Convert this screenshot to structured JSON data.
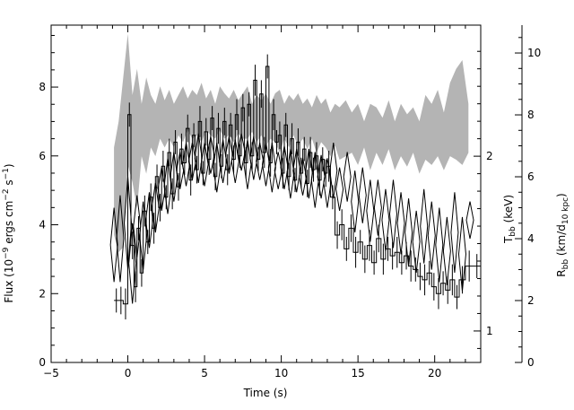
{
  "chart_data": {
    "type": "line",
    "title": "",
    "xlabel": "Time (s)",
    "ylabel": {
      "base": "Flux (10",
      "exp1": "−9",
      "mid": " ergs cm",
      "exp2": "−2",
      "mid2": " s",
      "exp3": "−1",
      "end": ")"
    },
    "ylabel_right_T": {
      "base": "T",
      "sub": "bb",
      "end": " (keV)"
    },
    "ylabel_right_R": {
      "base": "R",
      "sub": "bb",
      "mid": " (km/d",
      "sub2": "10 kpc",
      "end": ")"
    },
    "xlim": [
      -5,
      23
    ],
    "ylim": [
      0,
      9.8
    ],
    "ylim_T": [
      0.82,
      2.75
    ],
    "ylim_R": [
      0,
      10.9
    ],
    "x_ticks": [
      -5,
      0,
      5,
      10,
      15,
      20
    ],
    "y_ticks": [
      0,
      2,
      4,
      6,
      8
    ],
    "T_ticks": [
      1,
      2
    ],
    "R_ticks": [
      0,
      2,
      4,
      6,
      8,
      10
    ],
    "grid": false,
    "legend": "none",
    "series": [
      {
        "kind": "flux_step",
        "x": [
          -0.9,
          -0.6,
          -0.3,
          0.0,
          0.2,
          0.4,
          0.6,
          0.8,
          1.0,
          1.2,
          1.4,
          1.6,
          1.8,
          2.0,
          2.2,
          2.4,
          2.6,
          2.8,
          3.0,
          3.2,
          3.4,
          3.6,
          3.8,
          4.0,
          4.2,
          4.4,
          4.6,
          4.8,
          5.0,
          5.2,
          5.4,
          5.6,
          5.8,
          6.0,
          6.2,
          6.4,
          6.6,
          6.8,
          7.0,
          7.2,
          7.4,
          7.6,
          7.8,
          8.0,
          8.2,
          8.4,
          8.6,
          8.8,
          9.0,
          9.2,
          9.4,
          9.6,
          9.8,
          10.0,
          10.2,
          10.4,
          10.6,
          10.8,
          11.0,
          11.2,
          11.4,
          11.6,
          11.8,
          12.0,
          12.2,
          12.4,
          12.6,
          12.8,
          13.0,
          13.2,
          13.5,
          13.8,
          14.1,
          14.4,
          14.7,
          15.0,
          15.3,
          15.6,
          15.9,
          16.2,
          16.5,
          16.8,
          17.1,
          17.4,
          17.7,
          18.0,
          18.3,
          18.6,
          18.9,
          19.2,
          19.5,
          19.8,
          20.1,
          20.4,
          20.7,
          21.0,
          21.3,
          21.6,
          22.0,
          22.5
        ],
        "y": [
          1.8,
          1.8,
          1.7,
          7.2,
          3.4,
          2.2,
          3.9,
          2.6,
          4.4,
          3.5,
          4.8,
          3.9,
          5.4,
          4.5,
          5.7,
          4.8,
          6.1,
          4.9,
          6.4,
          5.1,
          6.2,
          5.8,
          6.8,
          5.3,
          6.6,
          5.6,
          7.0,
          5.5,
          6.7,
          5.9,
          7.1,
          5.4,
          6.8,
          5.7,
          7.0,
          5.6,
          6.9,
          5.9,
          7.2,
          6.0,
          7.4,
          5.8,
          7.5,
          6.0,
          8.2,
          5.9,
          7.8,
          6.1,
          8.6,
          5.8,
          7.2,
          6.4,
          6.6,
          5.5,
          6.9,
          5.4,
          6.5,
          5.3,
          6.4,
          5.5,
          6.2,
          5.2,
          6.1,
          5.6,
          6.0,
          5.3,
          5.9,
          5.5,
          5.7,
          4.8,
          3.7,
          4.0,
          3.3,
          3.9,
          3.2,
          3.5,
          3.0,
          3.4,
          2.9,
          3.6,
          3.0,
          3.3,
          3.1,
          3.2,
          2.9,
          3.1,
          2.8,
          2.7,
          2.5,
          2.4,
          2.6,
          2.2,
          2.0,
          2.3,
          2.1,
          2.4,
          1.9,
          2.4,
          2.8,
          2.8
        ]
      },
      {
        "kind": "T_band",
        "x": [
          -0.9,
          -0.6,
          -0.3,
          0.0,
          0.3,
          0.6,
          0.9,
          1.2,
          1.5,
          1.8,
          2.1,
          2.4,
          2.7,
          3.0,
          3.3,
          3.6,
          3.9,
          4.2,
          4.5,
          4.8,
          5.1,
          5.4,
          5.7,
          6.0,
          6.3,
          6.6,
          6.9,
          7.2,
          7.5,
          7.8,
          8.1,
          8.4,
          8.7,
          9.0,
          9.3,
          9.6,
          9.9,
          10.2,
          10.5,
          10.8,
          11.1,
          11.4,
          11.7,
          12.0,
          12.3,
          12.6,
          12.9,
          13.2,
          13.5,
          13.8,
          14.2,
          14.6,
          15.0,
          15.4,
          15.8,
          16.2,
          16.6,
          17.0,
          17.4,
          17.8,
          18.2,
          18.6,
          19.0,
          19.4,
          19.8,
          20.2,
          20.6,
          21.0,
          21.4,
          21.8,
          22.2
        ],
        "lo": [
          1.55,
          1.45,
          1.48,
          1.95,
          1.85,
          1.7,
          2.0,
          1.9,
          2.05,
          2.0,
          2.1,
          2.05,
          2.1,
          2.05,
          2.12,
          2.08,
          2.15,
          2.1,
          2.12,
          2.08,
          2.15,
          2.12,
          2.1,
          2.15,
          2.1,
          2.12,
          2.08,
          2.13,
          2.1,
          2.1,
          2.14,
          2.08,
          2.12,
          2.06,
          2.1,
          2.08,
          2.02,
          2.1,
          2.05,
          2.12,
          2.06,
          2.1,
          2.04,
          2.1,
          2.02,
          2.08,
          2.05,
          2.0,
          2.06,
          1.98,
          2.0,
          2.02,
          1.95,
          2.05,
          1.92,
          2.02,
          1.95,
          2.04,
          1.92,
          2.0,
          1.94,
          2.02,
          1.9,
          1.98,
          1.95,
          2.0,
          1.92,
          2.0,
          1.98,
          1.95,
          2.02
        ],
        "hi": [
          2.05,
          2.2,
          2.45,
          2.7,
          2.35,
          2.5,
          2.3,
          2.45,
          2.35,
          2.3,
          2.4,
          2.32,
          2.38,
          2.3,
          2.35,
          2.4,
          2.33,
          2.38,
          2.35,
          2.42,
          2.33,
          2.38,
          2.3,
          2.4,
          2.36,
          2.33,
          2.38,
          2.32,
          2.36,
          2.4,
          2.3,
          2.35,
          2.32,
          2.36,
          2.3,
          2.36,
          2.38,
          2.3,
          2.35,
          2.32,
          2.36,
          2.3,
          2.33,
          2.28,
          2.35,
          2.3,
          2.33,
          2.25,
          2.3,
          2.28,
          2.32,
          2.25,
          2.3,
          2.2,
          2.3,
          2.28,
          2.22,
          2.32,
          2.2,
          2.3,
          2.24,
          2.28,
          2.2,
          2.35,
          2.3,
          2.38,
          2.25,
          2.42,
          2.5,
          2.55,
          2.3
        ]
      },
      {
        "kind": "R_diamonds",
        "x": [
          -0.9,
          -0.5,
          0.0,
          0.3,
          0.6,
          1.0,
          1.4,
          1.8,
          2.2,
          2.6,
          3.0,
          3.4,
          3.8,
          4.2,
          4.6,
          5.0,
          5.4,
          5.8,
          6.2,
          6.6,
          7.0,
          7.4,
          7.8,
          8.2,
          8.6,
          9.0,
          9.4,
          9.8,
          10.2,
          10.6,
          11.0,
          11.4,
          11.8,
          12.2,
          12.6,
          13.0,
          13.4,
          13.8,
          14.3,
          14.8,
          15.3,
          15.8,
          16.3,
          16.8,
          17.3,
          17.8,
          18.3,
          18.8,
          19.3,
          19.8,
          20.3,
          20.8,
          21.3,
          21.8,
          22.3
        ],
        "center": [
          3.8,
          4.0,
          4.5,
          3.2,
          4.4,
          4.1,
          4.6,
          5.0,
          5.6,
          5.7,
          6.0,
          6.2,
          6.4,
          6.5,
          6.6,
          6.4,
          6.7,
          6.3,
          6.5,
          6.7,
          6.5,
          6.8,
          6.4,
          6.6,
          6.5,
          6.4,
          6.3,
          6.2,
          6.3,
          6.1,
          6.2,
          6.0,
          6.1,
          5.9,
          6.0,
          5.8,
          6.2,
          5.6,
          6.0,
          5.2,
          5.4,
          4.9,
          5.0,
          4.6,
          4.8,
          4.5,
          4.2,
          3.9,
          4.4,
          4.1,
          3.8,
          3.6,
          4.2,
          3.5,
          4.6
        ],
        "err": [
          1.2,
          1.4,
          1.5,
          1.3,
          1.0,
          1.1,
          0.9,
          0.8,
          0.7,
          0.9,
          0.8,
          0.6,
          0.7,
          0.6,
          0.8,
          0.7,
          0.6,
          0.8,
          0.7,
          0.6,
          0.7,
          0.6,
          0.8,
          0.7,
          0.6,
          0.7,
          0.8,
          0.6,
          0.7,
          0.8,
          0.7,
          0.6,
          0.8,
          0.9,
          0.7,
          0.8,
          0.9,
          0.7,
          0.8,
          1.0,
          0.9,
          1.0,
          0.9,
          1.0,
          1.1,
          1.0,
          1.1,
          1.0,
          1.2,
          1.1,
          1.2,
          1.1,
          1.3,
          1.2,
          0.6
        ]
      }
    ]
  }
}
